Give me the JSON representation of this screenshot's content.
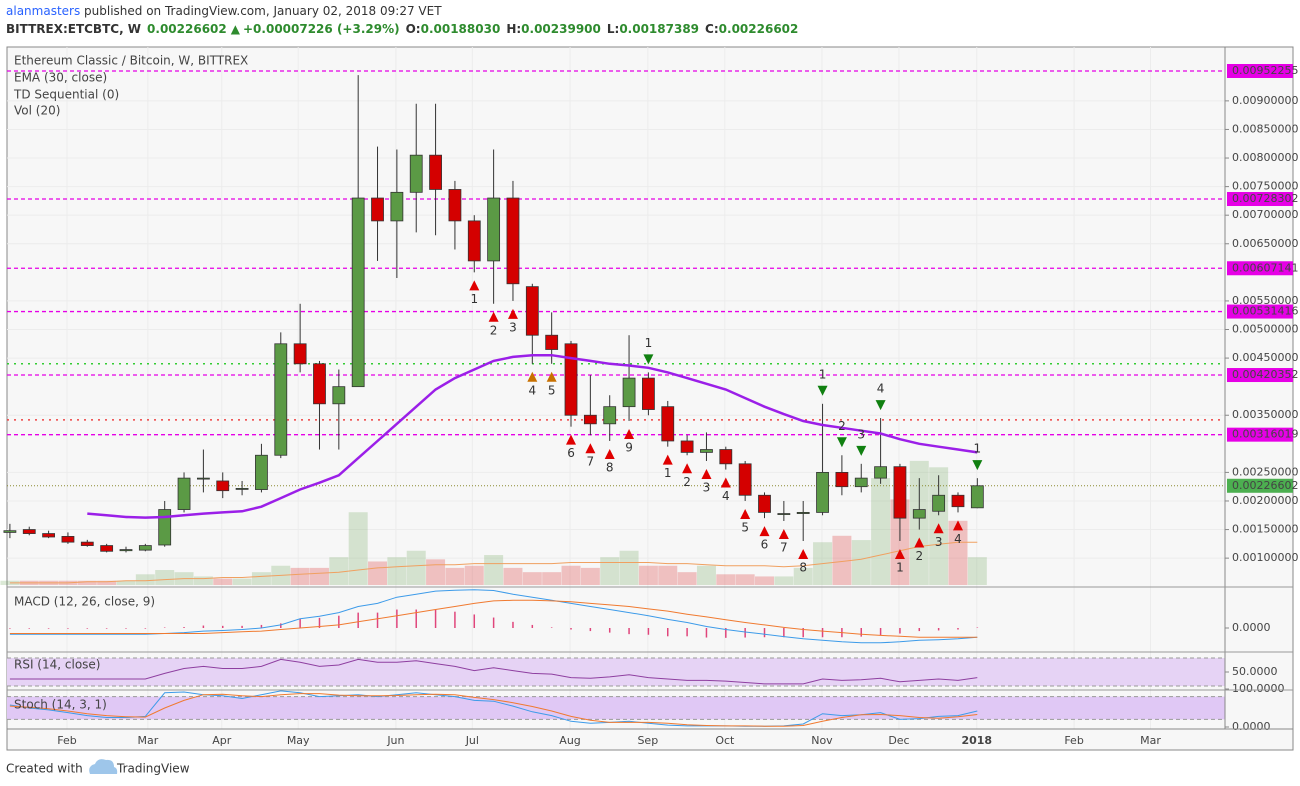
{
  "header": {
    "author": "alanmasters",
    "published": " published on TradingView.com, January 02, 2018 09:27 VET",
    "symbol": "BITTREX:ETCBTC, W",
    "price": "0.00226602",
    "change": "+0.00007226 (+3.29%)",
    "ohlc": [
      {
        "k": "O:",
        "v": "0.00188030"
      },
      {
        "k": "H:",
        "v": "0.00239900"
      },
      {
        "k": "L:",
        "v": "0.00187389"
      },
      {
        "k": "C:",
        "v": "0.00226602"
      }
    ]
  },
  "footer": {
    "created": "Created with",
    "brand": "TradingView"
  },
  "chart_data": {
    "type": "candlestick",
    "title": "Ethereum Classic / Bitcoin, W, BITTREX",
    "indicators": [
      "EMA (30, close)",
      "TD Sequential (0)",
      "Vol (20)"
    ],
    "up_color": "#5b9a45",
    "down_color": "#d40000",
    "ema_color": "#9b1fe8",
    "vol_ma_color": "#f0a060",
    "open": [
      0.00145,
      0.0015,
      0.00143,
      0.00138,
      0.00128,
      0.00122,
      0.00113,
      0.00114,
      0.00123,
      0.00185,
      0.0024,
      0.00235,
      0.00222,
      0.0022,
      0.0028,
      0.00475,
      0.0044,
      0.0037,
      0.004,
      0.0073,
      0.0069,
      0.0074,
      0.00805,
      0.00745,
      0.0069,
      0.0062,
      0.0073,
      0.00575,
      0.0049,
      0.00475,
      0.0035,
      0.00335,
      0.00365,
      0.00415,
      0.00365,
      0.00305,
      0.00285,
      0.0029,
      0.00265,
      0.0021,
      0.00178,
      0.00178,
      0.0018,
      0.0025,
      0.00225,
      0.0024,
      0.0026,
      0.0017,
      0.00182,
      0.0021,
      0.0018803
    ],
    "high": [
      0.0016,
      0.00155,
      0.00148,
      0.00145,
      0.00132,
      0.00125,
      0.0012,
      0.00125,
      0.002,
      0.0025,
      0.0029,
      0.0025,
      0.00235,
      0.003,
      0.00495,
      0.00545,
      0.00445,
      0.0043,
      0.00945,
      0.0082,
      0.00815,
      0.00895,
      0.00895,
      0.0076,
      0.007,
      0.00815,
      0.0076,
      0.0058,
      0.0053,
      0.0048,
      0.0042,
      0.00385,
      0.0049,
      0.00425,
      0.00375,
      0.00315,
      0.0032,
      0.00295,
      0.0027,
      0.00215,
      0.002,
      0.002,
      0.0037,
      0.0028,
      0.00265,
      0.00345,
      0.00265,
      0.0024,
      0.00245,
      0.00215,
      0.002399
    ],
    "low": [
      0.00135,
      0.0014,
      0.00135,
      0.00125,
      0.0012,
      0.0011,
      0.0011,
      0.00112,
      0.0012,
      0.0018,
      0.00215,
      0.00205,
      0.0021,
      0.00215,
      0.00275,
      0.00425,
      0.0029,
      0.0029,
      0.004,
      0.0062,
      0.0059,
      0.0067,
      0.00665,
      0.0064,
      0.006,
      0.00545,
      0.0055,
      0.0044,
      0.0044,
      0.0033,
      0.00315,
      0.00305,
      0.0034,
      0.0035,
      0.00295,
      0.0028,
      0.0027,
      0.00255,
      0.002,
      0.0017,
      0.00165,
      0.0013,
      0.00175,
      0.0021,
      0.00215,
      0.0023,
      0.0013,
      0.0015,
      0.00175,
      0.0018,
      0.00187389
    ],
    "close": [
      0.00148,
      0.00143,
      0.00137,
      0.00128,
      0.00122,
      0.00112,
      0.00115,
      0.00122,
      0.00185,
      0.0024,
      0.0024,
      0.00218,
      0.00222,
      0.0028,
      0.00475,
      0.0044,
      0.0037,
      0.004,
      0.0073,
      0.0069,
      0.0074,
      0.00805,
      0.00745,
      0.0069,
      0.0062,
      0.0073,
      0.0058,
      0.0049,
      0.00465,
      0.0035,
      0.00335,
      0.00365,
      0.00415,
      0.0036,
      0.00305,
      0.00285,
      0.0029,
      0.00265,
      0.0021,
      0.0018,
      0.00178,
      0.0018,
      0.0025,
      0.00225,
      0.0024,
      0.0026,
      0.0017,
      0.00185,
      0.0021,
      0.0019,
      0.00226602
    ],
    "volume": [
      2,
      2,
      2,
      2,
      2,
      2,
      2,
      5,
      7,
      6,
      4,
      3,
      3,
      6,
      9,
      8,
      8,
      13,
      34,
      11,
      13,
      16,
      12,
      8,
      9,
      14,
      8,
      6,
      6,
      9,
      8,
      13,
      16,
      9,
      9,
      6,
      9,
      5,
      5,
      4,
      4,
      8,
      20,
      23,
      21,
      50,
      40,
      58,
      55,
      30,
      13
    ],
    "volume_ma": [
      1,
      1,
      1,
      1,
      1.5,
      1.5,
      2,
      2,
      2.5,
      3,
      3,
      3.5,
      3.5,
      4,
      4.5,
      5,
      5.5,
      6,
      7,
      8,
      8.5,
      9,
      9.5,
      9.5,
      10,
      10,
      10,
      10,
      10,
      10.5,
      10.5,
      10.5,
      10.5,
      10.5,
      10,
      10,
      9.5,
      9,
      9,
      9,
      8.5,
      9,
      10,
      11,
      12,
      14,
      16,
      18,
      19,
      20,
      20
    ],
    "vlim": [
      0,
      100
    ],
    "ema": [
      null,
      null,
      null,
      null,
      0.00178,
      0.00175,
      0.00172,
      0.00171,
      0.00172,
      0.00175,
      0.00178,
      0.0018,
      0.00182,
      0.0019,
      0.00205,
      0.0022,
      0.00232,
      0.00245,
      0.00275,
      0.00305,
      0.00335,
      0.00365,
      0.00395,
      0.00415,
      0.0043,
      0.00445,
      0.00452,
      0.00455,
      0.00455,
      0.0045,
      0.00445,
      0.0044,
      0.00437,
      0.00433,
      0.00425,
      0.00415,
      0.00405,
      0.00395,
      0.0038,
      0.00365,
      0.00352,
      0.0034,
      0.00333,
      0.00328,
      0.00323,
      0.00318,
      0.00308,
      0.003,
      0.00295,
      0.0029,
      0.00285
    ],
    "xlim": [
      -0.15,
      62.8
    ],
    "xticks": [
      {
        "value": 2.95,
        "label": "Feb"
      },
      {
        "value": 7.13,
        "label": "Mar"
      },
      {
        "value": 10.95,
        "label": "Apr"
      },
      {
        "value": 14.9,
        "label": "May"
      },
      {
        "value": 19.95,
        "label": "Jun"
      },
      {
        "value": 23.9,
        "label": "Jul"
      },
      {
        "value": 28.95,
        "label": "Aug"
      },
      {
        "value": 32.97,
        "label": "Sep"
      },
      {
        "value": 36.95,
        "label": "Oct"
      },
      {
        "value": 41.97,
        "label": "Nov"
      },
      {
        "value": 45.95,
        "label": "Dec"
      },
      {
        "value": 49.97,
        "label": "2018"
      },
      {
        "value": 55.0,
        "label": "Feb"
      },
      {
        "value": 58.95,
        "label": "Mar"
      }
    ],
    "ylim": [
      0.00053,
      0.00989
    ],
    "yticks": [
      {
        "value": 0.001,
        "label": "0.00100000"
      },
      {
        "value": 0.0015,
        "label": "0.00150000"
      },
      {
        "value": 0.002,
        "label": "0.00200000"
      },
      {
        "value": 0.0025,
        "label": "0.00250000"
      },
      {
        "value": 0.0035,
        "label": "0.00350000"
      },
      {
        "value": 0.0045,
        "label": "0.00450000"
      },
      {
        "value": 0.005,
        "label": "0.00500000"
      },
      {
        "value": 0.0055,
        "label": "0.00550000"
      },
      {
        "value": 0.0065,
        "label": "0.00650000"
      },
      {
        "value": 0.007,
        "label": "0.00700000"
      },
      {
        "value": 0.0075,
        "label": "0.00750000"
      },
      {
        "value": 0.008,
        "label": "0.00800000"
      },
      {
        "value": 0.0085,
        "label": "0.00850000"
      },
      {
        "value": 0.009,
        "label": "0.00900000"
      }
    ],
    "levels": [
      {
        "value": 0.00952255,
        "label": "0.00952255"
      },
      {
        "value": 0.00728302,
        "label": "0.00728302"
      },
      {
        "value": 0.00607141,
        "label": "0.00607141"
      },
      {
        "value": 0.00531416,
        "label": "0.00531416"
      },
      {
        "value": 0.00420352,
        "label": "0.00420352"
      },
      {
        "value": 0.00316019,
        "label": "0.00316019"
      }
    ],
    "level_color": "#e600e6",
    "last": {
      "value": 0.00226602,
      "label": "0.00226602",
      "color": "#4caf50"
    },
    "dotted_levels": [
      {
        "value": 0.0044,
        "color": "#33cc33"
      },
      {
        "value": 0.00342,
        "color": "#ee4444"
      }
    ],
    "td": [
      {
        "x": 24,
        "label": "1",
        "side": "below",
        "color": "#e00000"
      },
      {
        "x": 25,
        "label": "2",
        "side": "below",
        "color": "#e00000"
      },
      {
        "x": 26,
        "label": "3",
        "side": "below",
        "color": "#e00000"
      },
      {
        "x": 27,
        "label": "4",
        "side": "below",
        "color": "#c87000"
      },
      {
        "x": 28,
        "label": "5",
        "side": "below",
        "color": "#c87000"
      },
      {
        "x": 29,
        "label": "6",
        "side": "below",
        "color": "#e00000"
      },
      {
        "x": 30,
        "label": "7",
        "side": "below",
        "color": "#e00000"
      },
      {
        "x": 31,
        "label": "8",
        "side": "below",
        "color": "#e00000"
      },
      {
        "x": 32,
        "label": "9",
        "side": "below",
        "color": "#e00000"
      },
      {
        "x": 34,
        "label": "1",
        "side": "below",
        "color": "#e00000"
      },
      {
        "x": 35,
        "label": "2",
        "side": "below",
        "color": "#e00000"
      },
      {
        "x": 36,
        "label": "3",
        "side": "below",
        "color": "#e00000"
      },
      {
        "x": 37,
        "label": "4",
        "side": "below",
        "color": "#e00000"
      },
      {
        "x": 38,
        "label": "5",
        "side": "below",
        "color": "#e00000"
      },
      {
        "x": 39,
        "label": "6",
        "side": "below",
        "color": "#e00000"
      },
      {
        "x": 40,
        "label": "7",
        "side": "below",
        "color": "#e00000"
      },
      {
        "x": 41,
        "label": "8",
        "side": "below",
        "color": "#e00000"
      },
      {
        "x": 46,
        "label": "1",
        "side": "below",
        "color": "#e00000"
      },
      {
        "x": 47,
        "label": "2",
        "side": "below",
        "color": "#e00000"
      },
      {
        "x": 48,
        "label": "3",
        "side": "below",
        "color": "#e00000"
      },
      {
        "x": 49,
        "label": "4",
        "side": "below",
        "color": "#e00000"
      },
      {
        "x": 33,
        "label": "1",
        "side": "above",
        "color": "#108010"
      },
      {
        "x": 42,
        "label": "1",
        "side": "above",
        "color": "#108010"
      },
      {
        "x": 43,
        "label": "2",
        "side": "above",
        "color": "#108010"
      },
      {
        "x": 44,
        "label": "3",
        "side": "above",
        "color": "#108010"
      },
      {
        "x": 45,
        "label": "4",
        "side": "above",
        "color": "#108010"
      },
      {
        "x": 50,
        "label": "1",
        "side": "above",
        "color": "#108010"
      }
    ],
    "macd": {
      "title": "MACD (12, 26, close, 9)",
      "ylim": [
        -0.00078,
        0.0013
      ],
      "yticks": [
        {
          "value": 0,
          "label": "0.0000"
        }
      ],
      "macd_color": "#3d9be9",
      "signal_color": "#f07a30",
      "hist_color": "#e0457b",
      "macd": [
        -0.0002,
        -0.0002,
        -0.0002,
        -0.0002,
        -0.0002,
        -0.0002,
        -0.0002,
        -0.0002,
        -0.00018,
        -0.00015,
        -0.0001,
        -8e-05,
        -5e-05,
        0,
        0.0001,
        0.0003,
        0.00038,
        0.0005,
        0.0007,
        0.0008,
        0.001,
        0.0011,
        0.0012,
        0.00123,
        0.00124,
        0.00122,
        0.0011,
        0.001,
        0.0009,
        0.0008,
        0.0007,
        0.0006,
        0.0005,
        0.0004,
        0.00028,
        0.00018,
        5e-05,
        -5e-05,
        -0.00013,
        -0.0002,
        -0.00028,
        -0.00035,
        -0.0004,
        -0.00045,
        -0.00048,
        -0.00048,
        -0.00045,
        -0.0004,
        -0.00038,
        -0.00035,
        -0.0003
      ],
      "signal": [
        -0.00018,
        -0.00018,
        -0.00018,
        -0.00018,
        -0.00018,
        -0.00018,
        -0.00018,
        -0.00018,
        -0.00018,
        -0.00018,
        -0.00018,
        -0.00015,
        -0.00012,
        -0.0001,
        -5e-05,
        0,
        5e-05,
        0.0001,
        0.0002,
        0.0003,
        0.0004,
        0.0005,
        0.0006,
        0.0007,
        0.0008,
        0.00088,
        0.0009,
        0.0009,
        0.00088,
        0.00085,
        0.0008,
        0.00075,
        0.0007,
        0.00062,
        0.00055,
        0.00045,
        0.00036,
        0.00027,
        0.00018,
        0.0001,
        2e-05,
        -5e-05,
        -0.0001,
        -0.00015,
        -0.0002,
        -0.00024,
        -0.00027,
        -0.0003,
        -0.0003,
        -0.0003,
        -0.0003
      ],
      "hist": [
        -2e-05,
        -2e-05,
        -2e-05,
        -2e-05,
        -2e-05,
        -2e-05,
        -2e-05,
        -2e-05,
        0,
        3e-05,
        8e-05,
        7e-05,
        7e-05,
        0.0001,
        0.00015,
        0.0003,
        0.00033,
        0.0004,
        0.0005,
        0.0005,
        0.0006,
        0.0006,
        0.0006,
        0.00053,
        0.00044,
        0.00034,
        0.0002,
        0.0001,
        2e-05,
        -5e-05,
        -0.0001,
        -0.00015,
        -0.0002,
        -0.00022,
        -0.00027,
        -0.00027,
        -0.00031,
        -0.00032,
        -0.00031,
        -0.0003,
        -0.0003,
        -0.0003,
        -0.0003,
        -0.0003,
        -0.00028,
        -0.00024,
        -0.00018,
        -0.0001,
        -8e-05,
        -5e-05,
        0
      ]
    },
    "rsi": {
      "title": "RSI (14, close)",
      "ylim": [
        24.3,
        78.6
      ],
      "yticks": [
        {
          "value": 50,
          "label": "50.0000"
        }
      ],
      "band": [
        30,
        70
      ],
      "color": "#8e3fa0",
      "values": [
        40,
        40,
        40,
        40,
        40,
        40,
        40,
        40,
        48,
        55,
        58,
        55,
        55,
        58,
        68,
        64,
        58,
        60,
        68,
        64,
        64,
        66,
        62,
        58,
        52,
        56,
        52,
        48,
        47,
        42,
        41,
        43,
        46,
        42,
        40,
        38,
        38,
        37,
        35,
        33,
        33,
        33,
        40,
        38,
        39,
        41,
        36,
        38,
        40,
        38,
        42
      ]
    },
    "stoch": {
      "title": "Stoch (14, 3, 1)",
      "ylim": [
        0,
        100
      ],
      "yticks": [
        {
          "value": 100,
          "label": "100.0000"
        },
        {
          "value": 0,
          "label": "0.0000"
        }
      ],
      "band": [
        20,
        80
      ],
      "k_color": "#3d9be9",
      "d_color": "#f07a30",
      "k": [
        58,
        50,
        45,
        38,
        30,
        25,
        25,
        28,
        90,
        92,
        85,
        82,
        75,
        85,
        95,
        90,
        80,
        82,
        85,
        80,
        85,
        90,
        85,
        80,
        70,
        68,
        55,
        40,
        30,
        15,
        10,
        12,
        15,
        10,
        5,
        3,
        3,
        3,
        2,
        2,
        3,
        8,
        35,
        30,
        32,
        38,
        20,
        22,
        28,
        30,
        42
      ],
      "d": [
        55,
        52,
        48,
        42,
        35,
        30,
        27,
        26,
        50,
        70,
        85,
        86,
        82,
        80,
        85,
        88,
        88,
        84,
        82,
        82,
        83,
        85,
        86,
        85,
        78,
        72,
        64,
        54,
        42,
        28,
        18,
        12,
        12,
        12,
        10,
        6,
        4,
        3,
        3,
        2,
        2,
        4,
        15,
        25,
        32,
        33,
        30,
        25,
        23,
        27,
        33
      ]
    }
  }
}
